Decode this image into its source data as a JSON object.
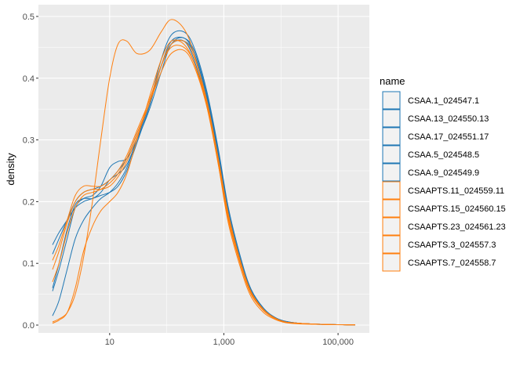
{
  "chart_data": {
    "type": "line",
    "title": "",
    "xlabel": "",
    "ylabel": "density",
    "x_scale": "log10",
    "x_range": [
      1,
      200000
    ],
    "ylim": [
      0,
      0.5
    ],
    "x_ticks": [
      {
        "value": 10,
        "label": "10"
      },
      {
        "value": 1000,
        "label": "1,000"
      },
      {
        "value": 100000,
        "label": "100,000"
      }
    ],
    "y_ticks": [
      {
        "value": 0.0,
        "label": "0.0"
      },
      {
        "value": 0.1,
        "label": "0.1"
      },
      {
        "value": 0.2,
        "label": "0.2"
      },
      {
        "value": 0.3,
        "label": "0.3"
      },
      {
        "value": 0.4,
        "label": "0.4"
      },
      {
        "value": 0.5,
        "label": "0.5"
      }
    ],
    "grid": true,
    "legend": {
      "title": "name",
      "position": "right"
    },
    "colors": {
      "CSAA": "#1f77b4",
      "CSAAPTS": "#ff7f0e",
      "panel": "#ebebeb",
      "grid": "#ffffff"
    },
    "x": [
      1,
      1.3,
      1.8,
      2.5,
      3.5,
      5,
      7,
      10,
      14,
      20,
      30,
      50,
      80,
      120,
      200,
      300,
      500,
      800,
      1200,
      2000,
      3000,
      5000,
      8000,
      12000,
      20000,
      30000,
      50000,
      80000,
      120000,
      200000
    ],
    "series": [
      {
        "name": "CSAA.1_024547.1",
        "group": "CSAA",
        "values": [
          0.055,
          0.09,
          0.14,
          0.19,
          0.205,
          0.21,
          0.225,
          0.255,
          0.265,
          0.27,
          0.3,
          0.35,
          0.41,
          0.455,
          0.465,
          0.44,
          0.37,
          0.27,
          0.18,
          0.1,
          0.055,
          0.025,
          0.012,
          0.006,
          0.003,
          0.002,
          0.001,
          0.0008,
          0.0006,
          0.0005
        ]
      },
      {
        "name": "CSAA.13_024550.13",
        "group": "CSAA",
        "values": [
          0.06,
          0.1,
          0.155,
          0.195,
          0.205,
          0.205,
          0.215,
          0.235,
          0.245,
          0.26,
          0.3,
          0.36,
          0.42,
          0.455,
          0.46,
          0.43,
          0.36,
          0.265,
          0.175,
          0.098,
          0.052,
          0.024,
          0.011,
          0.005,
          0.003,
          0.002,
          0.0012,
          0.0008,
          0.0006,
          0.0005
        ]
      },
      {
        "name": "CSAA.17_024551.17",
        "group": "CSAA",
        "values": [
          0.13,
          0.15,
          0.17,
          0.19,
          0.2,
          0.205,
          0.21,
          0.215,
          0.225,
          0.25,
          0.295,
          0.355,
          0.42,
          0.46,
          0.465,
          0.445,
          0.375,
          0.28,
          0.185,
          0.103,
          0.056,
          0.026,
          0.012,
          0.006,
          0.003,
          0.002,
          0.0012,
          0.0008,
          0.0006,
          0.0005
        ]
      },
      {
        "name": "CSAA.5_024548.5",
        "group": "CSAA",
        "values": [
          0.015,
          0.04,
          0.09,
          0.14,
          0.17,
          0.19,
          0.205,
          0.215,
          0.23,
          0.255,
          0.3,
          0.36,
          0.43,
          0.47,
          0.475,
          0.45,
          0.38,
          0.285,
          0.19,
          0.107,
          0.058,
          0.027,
          0.012,
          0.006,
          0.003,
          0.002,
          0.0012,
          0.0008,
          0.0006,
          0.0005
        ]
      },
      {
        "name": "CSAA.9_024549.9",
        "group": "CSAA",
        "values": [
          0.115,
          0.14,
          0.17,
          0.2,
          0.215,
          0.22,
          0.225,
          0.235,
          0.25,
          0.27,
          0.31,
          0.36,
          0.42,
          0.455,
          0.46,
          0.44,
          0.37,
          0.275,
          0.18,
          0.1,
          0.054,
          0.025,
          0.011,
          0.005,
          0.003,
          0.002,
          0.0012,
          0.0008,
          0.0006,
          0.0005
        ]
      },
      {
        "name": "CSAAPTS.11_024559.11",
        "group": "CSAAPTS",
        "values": [
          0.09,
          0.12,
          0.165,
          0.2,
          0.215,
          0.22,
          0.22,
          0.225,
          0.24,
          0.265,
          0.305,
          0.36,
          0.42,
          0.455,
          0.46,
          0.435,
          0.365,
          0.27,
          0.18,
          0.1,
          0.054,
          0.025,
          0.011,
          0.005,
          0.003,
          0.002,
          0.0012,
          0.0008,
          0.0006,
          0.0005
        ]
      },
      {
        "name": "CSAAPTS.15_024560.15",
        "group": "CSAAPTS",
        "values": [
          0.005,
          0.01,
          0.02,
          0.05,
          0.11,
          0.2,
          0.3,
          0.4,
          0.455,
          0.46,
          0.44,
          0.445,
          0.475,
          0.495,
          0.48,
          0.44,
          0.36,
          0.26,
          0.165,
          0.09,
          0.046,
          0.02,
          0.009,
          0.004,
          0.002,
          0.0015,
          0.001,
          0.0007,
          0.0005,
          0.0004
        ]
      },
      {
        "name": "CSAAPTS.23_024561.23",
        "group": "CSAAPTS",
        "values": [
          0.07,
          0.1,
          0.15,
          0.19,
          0.21,
          0.215,
          0.22,
          0.23,
          0.245,
          0.27,
          0.31,
          0.36,
          0.41,
          0.44,
          0.445,
          0.42,
          0.355,
          0.265,
          0.175,
          0.098,
          0.052,
          0.024,
          0.011,
          0.005,
          0.003,
          0.002,
          0.0012,
          0.0008,
          0.0006,
          0.0005
        ]
      },
      {
        "name": "CSAAPTS.3_024557.3",
        "group": "CSAAPTS",
        "values": [
          0.003,
          0.008,
          0.02,
          0.06,
          0.12,
          0.16,
          0.185,
          0.2,
          0.215,
          0.245,
          0.3,
          0.37,
          0.43,
          0.46,
          0.455,
          0.425,
          0.355,
          0.26,
          0.17,
          0.095,
          0.05,
          0.023,
          0.01,
          0.005,
          0.003,
          0.002,
          0.0012,
          0.0008,
          0.0006,
          0.0005
        ]
      },
      {
        "name": "CSAAPTS.7_024558.7",
        "group": "CSAAPTS",
        "values": [
          0.105,
          0.13,
          0.17,
          0.21,
          0.225,
          0.225,
          0.225,
          0.235,
          0.25,
          0.275,
          0.315,
          0.365,
          0.42,
          0.45,
          0.45,
          0.425,
          0.36,
          0.265,
          0.175,
          0.097,
          0.052,
          0.024,
          0.011,
          0.005,
          0.003,
          0.002,
          0.0012,
          0.0008,
          0.0006,
          0.0005
        ]
      }
    ]
  }
}
